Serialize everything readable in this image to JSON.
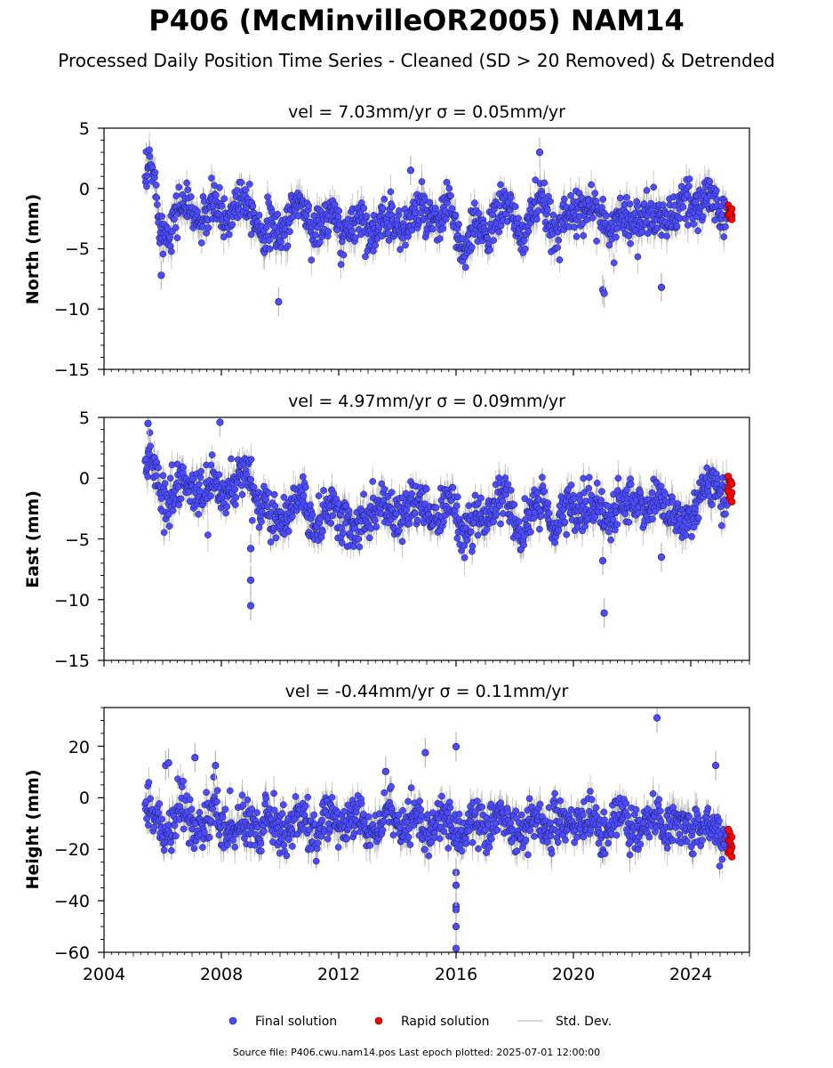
{
  "title": "P406 (McMinvilleOR2005) NAM14",
  "subtitle": "Processed Daily Position Time Series - Cleaned (SD > 20 Removed) & Detrended",
  "source_note": "Source file: P406.cwu.nam14.pos  Last epoch plotted: 2025-07-01 12:00:00",
  "colors": {
    "final": "#4b4bff",
    "rapid": "#ff0000",
    "stddev": "#b8b8b8",
    "edge": "#1e1e55"
  },
  "legend": {
    "placement": "bottom-center",
    "final": "Final solution",
    "rapid": "Rapid solution",
    "stddev": "Std. Dev."
  },
  "chart_data": [
    {
      "type": "scatter",
      "component": "north",
      "title": "vel = 7.03mm/yr   σ = 0.05mm/yr",
      "ylabel": "North (mm)",
      "xlim": [
        2004,
        2026
      ],
      "ylim": [
        -15,
        5
      ],
      "y_ticks": [
        "5",
        "0",
        "−5",
        "−10",
        "−15"
      ],
      "x_ticks": [],
      "velocity_mm_per_yr": 7.03,
      "velocity_sigma_mm_per_yr": 0.05,
      "final_solution": {
        "x": [
          2005.4,
          2005.55,
          2005.7,
          2005.85,
          2006.0,
          2006.3,
          2006.6,
          2007.0,
          2007.4,
          2007.8,
          2008.2,
          2008.6,
          2009.0,
          2009.4,
          2009.8,
          2010.2,
          2010.6,
          2011.0,
          2011.4,
          2011.8,
          2012.2,
          2012.6,
          2013.0,
          2013.4,
          2013.8,
          2014.2,
          2014.6,
          2015.0,
          2015.4,
          2015.8,
          2016.0,
          2016.3,
          2016.6,
          2017.0,
          2017.4,
          2017.8,
          2018.2,
          2018.6,
          2019.0,
          2019.4,
          2019.8,
          2020.2,
          2020.6,
          2021.0,
          2021.4,
          2021.8,
          2022.2,
          2022.6,
          2023.0,
          2023.4,
          2023.8,
          2024.2,
          2024.6,
          2025.0
        ],
        "y": [
          0.0,
          1.5,
          0.5,
          -2.0,
          -3.5,
          -2.5,
          -2.0,
          -1.5,
          -2.8,
          -1.6,
          -2.2,
          -1.2,
          -0.8,
          -3.5,
          -4.0,
          -2.5,
          -1.5,
          -2.5,
          -3.2,
          -2.5,
          -3.5,
          -3.0,
          -2.8,
          -3.5,
          -2.5,
          -3.0,
          -2.6,
          -1.8,
          -3.2,
          -1.5,
          -3.0,
          -5.5,
          -3.8,
          -3.0,
          -2.5,
          -1.5,
          -3.8,
          -2.5,
          -1.0,
          -4.0,
          -2.0,
          -1.8,
          -1.5,
          -2.5,
          -3.0,
          -2.5,
          -2.2,
          -3.0,
          -2.0,
          -2.5,
          -1.5,
          -1.0,
          -1.2,
          -1.5
        ]
      },
      "outliers": {
        "x": [
          2009.95,
          2014.45,
          2018.85,
          2021.0,
          2021.05,
          2023.0,
          2005.95
        ],
        "y": [
          -9.4,
          1.5,
          3.0,
          -8.4,
          -8.7,
          -8.2,
          -7.2
        ]
      },
      "rapid_solution": {
        "x": [
          2025.3,
          2025.35,
          2025.4,
          2025.45
        ],
        "y": [
          -1.5,
          -2.2,
          -1.8,
          -2.8
        ]
      }
    },
    {
      "type": "scatter",
      "component": "east",
      "title": "vel = 4.97mm/yr   σ = 0.09mm/yr",
      "ylabel": "East (mm)",
      "xlim": [
        2004,
        2026
      ],
      "ylim": [
        -15,
        5
      ],
      "y_ticks": [
        "5",
        "0",
        "−5",
        "−10",
        "−15"
      ],
      "x_ticks": [],
      "velocity_mm_per_yr": 4.97,
      "velocity_sigma_mm_per_yr": 0.09,
      "final_solution": {
        "x": [
          2005.4,
          2005.55,
          2005.7,
          2005.85,
          2006.0,
          2006.3,
          2006.6,
          2007.0,
          2007.4,
          2007.8,
          2008.2,
          2008.6,
          2009.0,
          2009.4,
          2009.8,
          2010.2,
          2010.6,
          2011.0,
          2011.4,
          2011.8,
          2012.2,
          2012.6,
          2013.0,
          2013.4,
          2013.8,
          2014.2,
          2014.6,
          2015.0,
          2015.4,
          2015.8,
          2016.0,
          2016.3,
          2016.6,
          2017.0,
          2017.4,
          2017.8,
          2018.2,
          2018.6,
          2019.0,
          2019.4,
          2019.8,
          2020.2,
          2020.6,
          2021.0,
          2021.4,
          2021.8,
          2022.2,
          2022.6,
          2023.0,
          2023.4,
          2023.8,
          2024.2,
          2024.6,
          2025.0
        ],
        "y": [
          0.5,
          1.5,
          0.8,
          -1.0,
          -2.0,
          -1.0,
          -0.8,
          -0.5,
          -1.5,
          -0.5,
          -0.8,
          0.2,
          0.2,
          -2.5,
          -3.8,
          -2.5,
          -2.0,
          -2.8,
          -4.0,
          -2.5,
          -3.2,
          -5.0,
          -2.5,
          -2.8,
          -3.5,
          -2.0,
          -3.0,
          -2.2,
          -3.5,
          -2.0,
          -2.5,
          -4.5,
          -4.0,
          -3.0,
          -2.0,
          -1.8,
          -4.0,
          -3.0,
          -1.5,
          -4.5,
          -2.5,
          -2.0,
          -2.8,
          -2.5,
          -3.0,
          -2.5,
          -1.5,
          -2.8,
          -1.5,
          -3.0,
          -4.0,
          -1.8,
          -1.0,
          -0.8
        ]
      },
      "outliers": {
        "x": [
          2005.5,
          2007.95,
          2009.0,
          2009.0,
          2009.0,
          2021.0,
          2021.05,
          2023.0
        ],
        "y": [
          4.5,
          4.6,
          -5.8,
          -8.4,
          -10.5,
          -6.8,
          -11.1,
          -6.5
        ]
      },
      "rapid_solution": {
        "x": [
          2025.3,
          2025.35,
          2025.4,
          2025.45
        ],
        "y": [
          0.0,
          -0.8,
          -1.3,
          -1.8
        ]
      }
    },
    {
      "type": "scatter",
      "component": "height",
      "title": "vel = -0.44mm/yr   σ = 0.11mm/yr",
      "ylabel": "Height (mm)",
      "xlim": [
        2004,
        2026
      ],
      "ylim": [
        -60,
        35
      ],
      "y_ticks": [
        "20",
        "0",
        "−20",
        "−40",
        "−60"
      ],
      "x_ticks": [
        "2004",
        "2008",
        "2012",
        "2016",
        "2020",
        "2024"
      ],
      "velocity_mm_per_yr": -0.44,
      "velocity_sigma_mm_per_yr": 0.11,
      "final_solution": {
        "x": [
          2005.4,
          2005.55,
          2005.7,
          2005.85,
          2006.0,
          2006.3,
          2006.6,
          2007.0,
          2007.4,
          2007.8,
          2008.2,
          2008.6,
          2009.0,
          2009.4,
          2009.8,
          2010.2,
          2010.6,
          2011.0,
          2011.4,
          2011.8,
          2012.2,
          2012.6,
          2013.0,
          2013.4,
          2013.8,
          2014.2,
          2014.6,
          2015.0,
          2015.4,
          2015.8,
          2016.0,
          2016.3,
          2016.6,
          2017.0,
          2017.4,
          2017.8,
          2018.2,
          2018.6,
          2019.0,
          2019.4,
          2019.8,
          2020.2,
          2020.6,
          2021.0,
          2021.4,
          2021.8,
          2022.2,
          2022.6,
          2023.0,
          2023.4,
          2023.8,
          2024.2,
          2024.6,
          2025.0
        ],
        "y": [
          -5,
          -8,
          -10,
          -12,
          -8,
          -10,
          -6,
          -9,
          -12,
          -8,
          -10,
          -13,
          -9,
          -11,
          -8,
          -12,
          -9,
          -10,
          -13,
          -8,
          -11,
          -9,
          -12,
          -10,
          -8,
          -11,
          -9,
          -12,
          -8,
          -10,
          -11,
          -13,
          -9,
          -12,
          -8,
          -10,
          -13,
          -9,
          -11,
          -8,
          -12,
          -10,
          -9,
          -13,
          -8,
          -11,
          -9,
          -12,
          -7,
          -11,
          -10,
          -8,
          -12,
          -15
        ]
      },
      "outliers": {
        "x": [
          2006.1,
          2006.2,
          2007.1,
          2007.8,
          2013.6,
          2014.95,
          2016.0,
          2016.0,
          2016.0,
          2016.0,
          2016.0,
          2016.0,
          2016.0,
          2022.85,
          2024.85
        ],
        "y": [
          12.5,
          13.5,
          15.6,
          12.5,
          10.2,
          17.5,
          19.8,
          -29,
          -34,
          -42,
          -43.5,
          -50,
          -58.5,
          31.0,
          12.5
        ]
      },
      "rapid_solution": {
        "x": [
          2025.3,
          2025.35,
          2025.4,
          2025.45
        ],
        "y": [
          -12,
          -16,
          -20,
          -22
        ]
      }
    }
  ]
}
